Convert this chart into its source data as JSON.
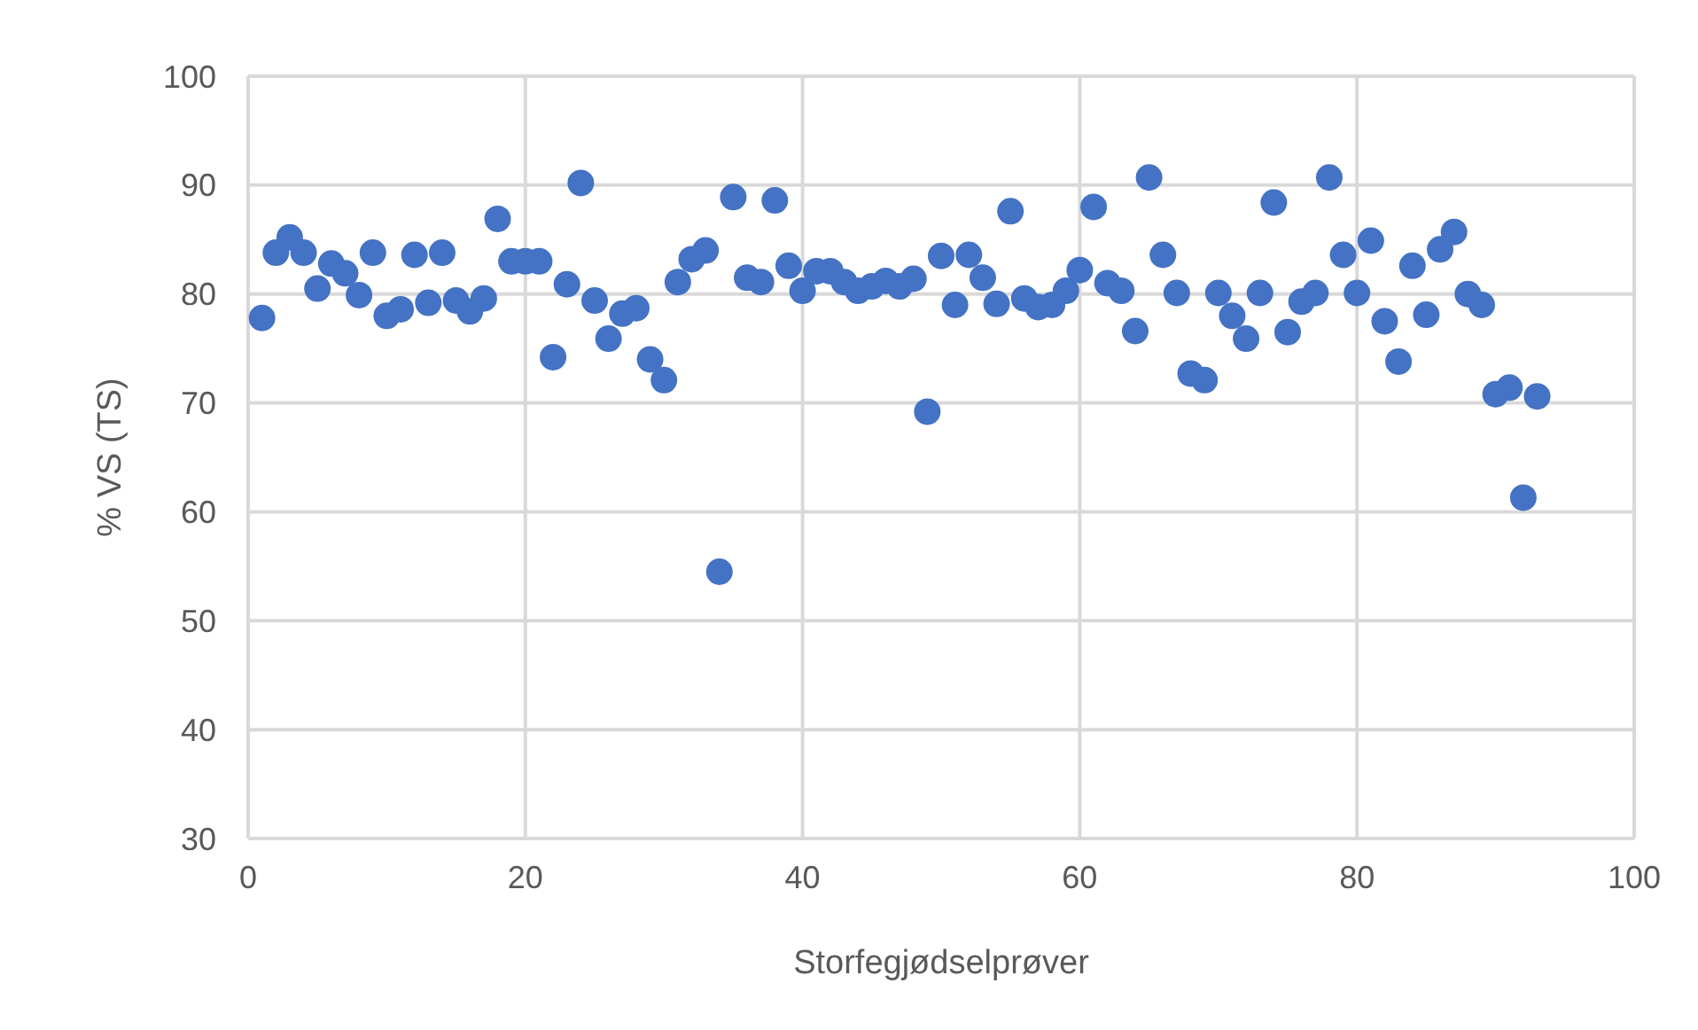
{
  "chart_data": {
    "type": "scatter",
    "xlabel": "Storfegjødselprøver",
    "ylabel": "% VS (TS)",
    "xlim": [
      0,
      100
    ],
    "ylim": [
      30,
      100
    ],
    "xticks": [
      0,
      20,
      40,
      60,
      80,
      100
    ],
    "yticks": [
      30,
      40,
      50,
      60,
      70,
      80,
      90,
      100
    ],
    "grid": true,
    "marker": "circle",
    "x": [
      1,
      2,
      3,
      4,
      5,
      6,
      7,
      8,
      9,
      10,
      11,
      12,
      13,
      14,
      15,
      16,
      17,
      18,
      19,
      20,
      21,
      22,
      23,
      24,
      25,
      26,
      27,
      28,
      29,
      30,
      31,
      32,
      33,
      34,
      35,
      36,
      37,
      38,
      39,
      40,
      41,
      42,
      43,
      44,
      45,
      46,
      47,
      48,
      49,
      50,
      51,
      52,
      53,
      54,
      55,
      56,
      57,
      58,
      59,
      60,
      61,
      62,
      63,
      64,
      65,
      66,
      67,
      68,
      69,
      70,
      71,
      72,
      73,
      74,
      75,
      76,
      77,
      78,
      79,
      80,
      81,
      82,
      83,
      84,
      85,
      86,
      87,
      88,
      89,
      90,
      91,
      92,
      93
    ],
    "series": [
      {
        "color": "#4472c4",
        "values": [
          77.8,
          83.8,
          85.2,
          83.8,
          80.5,
          82.8,
          81.9,
          79.9,
          83.8,
          78,
          78.6,
          83.6,
          79.2,
          83.8,
          79.4,
          78.4,
          79.6,
          86.9,
          83,
          83,
          83,
          74.2,
          80.9,
          90.2,
          79.4,
          75.9,
          78.2,
          78.7,
          74,
          72.1,
          81.1,
          83.2,
          84,
          54.5,
          88.9,
          81.5,
          81.1,
          88.6,
          82.6,
          80.3,
          82.1,
          82.1,
          81.1,
          80.3,
          80.7,
          81.2,
          80.7,
          81.4,
          69.2,
          83.5,
          79,
          83.6,
          81.5,
          79.1,
          87.6,
          79.6,
          78.8,
          79,
          80.3,
          82.2,
          88,
          81,
          80.3,
          76.6,
          90.7,
          83.6,
          80.1,
          72.7,
          72.1,
          80.1,
          78,
          75.9,
          80.1,
          88.4,
          76.5,
          79.3,
          80.1,
          90.7,
          83.6,
          80.1,
          84.9,
          77.5,
          73.8,
          82.6,
          78.1,
          84.1,
          85.7,
          80,
          79,
          70.8,
          71.4,
          61.3,
          70.6
        ]
      }
    ]
  }
}
